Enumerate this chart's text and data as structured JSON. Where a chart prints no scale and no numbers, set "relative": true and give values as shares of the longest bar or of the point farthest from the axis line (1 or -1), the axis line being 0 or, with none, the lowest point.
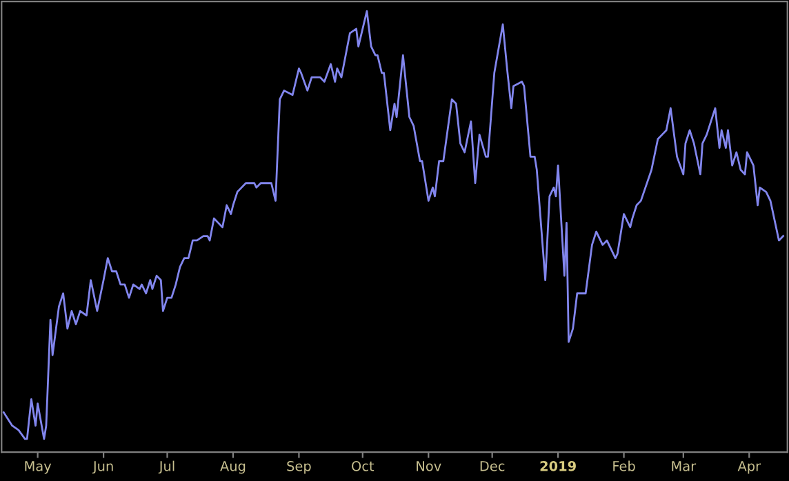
{
  "chart_data": {
    "type": "line",
    "relative": true,
    "grid": false,
    "legend": false,
    "tick_labels": "x",
    "marker": "none",
    "line_style": "solid",
    "xlim": [
      "2018-04-14",
      "2019-04-19"
    ],
    "xticks": [
      {
        "value": "2018-05-01",
        "label": "May"
      },
      {
        "value": "2018-06-01",
        "label": "Jun"
      },
      {
        "value": "2018-07-01",
        "label": "Jul"
      },
      {
        "value": "2018-08-01",
        "label": "Aug"
      },
      {
        "value": "2018-09-01",
        "label": "Sep"
      },
      {
        "value": "2018-10-01",
        "label": "Oct"
      },
      {
        "value": "2018-11-01",
        "label": "Nov"
      },
      {
        "value": "2018-12-01",
        "label": "Dec"
      },
      {
        "value": "2019-01-01",
        "label": "2019"
      },
      {
        "value": "2019-02-01",
        "label": "Feb"
      },
      {
        "value": "2019-03-01",
        "label": "Mar"
      },
      {
        "value": "2019-04-01",
        "label": "Apr"
      }
    ],
    "x": [
      "2018-04-15",
      "2018-04-19",
      "2018-04-22",
      "2018-04-25",
      "2018-04-26",
      "2018-04-28",
      "2018-04-30",
      "2018-05-01",
      "2018-05-04",
      "2018-05-05",
      "2018-05-07",
      "2018-05-08",
      "2018-05-11",
      "2018-05-13",
      "2018-05-15",
      "2018-05-17",
      "2018-05-19",
      "2018-05-21",
      "2018-05-24",
      "2018-05-26",
      "2018-05-29",
      "2018-06-01",
      "2018-06-03",
      "2018-06-05",
      "2018-06-07",
      "2018-06-09",
      "2018-06-11",
      "2018-06-13",
      "2018-06-15",
      "2018-06-18",
      "2018-06-19",
      "2018-06-21",
      "2018-06-23",
      "2018-06-24",
      "2018-06-26",
      "2018-06-28",
      "2018-06-29",
      "2018-07-01",
      "2018-07-03",
      "2018-07-05",
      "2018-07-07",
      "2018-07-09",
      "2018-07-11",
      "2018-07-13",
      "2018-07-15",
      "2018-07-18",
      "2018-07-20",
      "2018-07-21",
      "2018-07-23",
      "2018-07-25",
      "2018-07-27",
      "2018-07-29",
      "2018-07-31",
      "2018-08-01",
      "2018-08-03",
      "2018-08-05",
      "2018-08-07",
      "2018-08-09",
      "2018-08-11",
      "2018-08-12",
      "2018-08-14",
      "2018-08-15",
      "2018-08-18",
      "2018-08-19",
      "2018-08-21",
      "2018-08-23",
      "2018-08-25",
      "2018-08-29",
      "2018-09-01",
      "2018-09-02",
      "2018-09-05",
      "2018-09-07",
      "2018-09-11",
      "2018-09-13",
      "2018-09-16",
      "2018-09-18",
      "2018-09-19",
      "2018-09-21",
      "2018-09-23",
      "2018-09-25",
      "2018-09-28",
      "2018-09-29",
      "2018-10-03",
      "2018-10-05",
      "2018-10-07",
      "2018-10-08",
      "2018-10-10",
      "2018-10-11",
      "2018-10-14",
      "2018-10-16",
      "2018-10-17",
      "2018-10-20",
      "2018-10-23",
      "2018-10-25",
      "2018-10-28",
      "2018-10-29",
      "2018-11-01",
      "2018-11-03",
      "2018-11-04",
      "2018-11-06",
      "2018-11-08",
      "2018-11-12",
      "2018-11-14",
      "2018-11-16",
      "2018-11-18",
      "2018-11-21",
      "2018-11-23",
      "2018-11-25",
      "2018-11-28",
      "2018-11-29",
      "2018-12-02",
      "2018-12-06",
      "2018-12-08",
      "2018-12-10",
      "2018-12-11",
      "2018-12-15",
      "2018-12-16",
      "2018-12-19",
      "2018-12-21",
      "2018-12-22",
      "2018-12-26",
      "2018-12-28",
      "2018-12-30",
      "2018-12-31",
      "2019-01-01",
      "2019-01-04",
      "2019-01-05",
      "2019-01-06",
      "2019-01-08",
      "2019-01-10",
      "2019-01-12",
      "2019-01-14",
      "2019-01-17",
      "2019-01-19",
      "2019-01-22",
      "2019-01-24",
      "2019-01-28",
      "2019-01-29",
      "2019-02-01",
      "2019-02-04",
      "2019-02-05",
      "2019-02-07",
      "2019-02-09",
      "2019-02-14",
      "2019-02-17",
      "2019-02-19",
      "2019-02-21",
      "2019-02-23",
      "2019-02-26",
      "2019-03-01",
      "2019-03-02",
      "2019-03-04",
      "2019-03-06",
      "2019-03-09",
      "2019-03-10",
      "2019-03-12",
      "2019-03-14",
      "2019-03-16",
      "2019-03-18",
      "2019-03-19",
      "2019-03-21",
      "2019-03-22",
      "2019-03-24",
      "2019-03-26",
      "2019-03-28",
      "2019-03-30",
      "2019-03-31",
      "2019-04-03",
      "2019-04-05",
      "2019-04-06",
      "2019-04-09",
      "2019-04-11",
      "2019-04-15",
      "2019-04-17"
    ],
    "series": [
      {
        "color": "#8286ee",
        "values": [
          0.09,
          0.06,
          0.05,
          0.03,
          0.03,
          0.12,
          0.06,
          0.11,
          0.03,
          0.06,
          0.3,
          0.22,
          0.33,
          0.36,
          0.28,
          0.32,
          0.29,
          0.32,
          0.31,
          0.39,
          0.32,
          0.39,
          0.44,
          0.41,
          0.41,
          0.38,
          0.38,
          0.35,
          0.38,
          0.37,
          0.38,
          0.36,
          0.39,
          0.37,
          0.4,
          0.39,
          0.32,
          0.35,
          0.35,
          0.38,
          0.42,
          0.44,
          0.44,
          0.48,
          0.48,
          0.49,
          0.49,
          0.48,
          0.53,
          0.52,
          0.51,
          0.56,
          0.54,
          0.56,
          0.59,
          0.6,
          0.61,
          0.61,
          0.61,
          0.6,
          0.61,
          0.61,
          0.61,
          0.61,
          0.57,
          0.8,
          0.82,
          0.81,
          0.87,
          0.86,
          0.82,
          0.85,
          0.85,
          0.84,
          0.88,
          0.84,
          0.87,
          0.85,
          0.9,
          0.95,
          0.96,
          0.92,
          1.0,
          0.92,
          0.9,
          0.9,
          0.86,
          0.86,
          0.73,
          0.79,
          0.76,
          0.9,
          0.76,
          0.74,
          0.66,
          0.66,
          0.57,
          0.6,
          0.58,
          0.66,
          0.66,
          0.8,
          0.79,
          0.7,
          0.68,
          0.75,
          0.61,
          0.72,
          0.67,
          0.67,
          0.86,
          0.97,
          0.87,
          0.78,
          0.83,
          0.84,
          0.83,
          0.67,
          0.67,
          0.64,
          0.39,
          0.58,
          0.6,
          0.58,
          0.65,
          0.4,
          0.52,
          0.25,
          0.28,
          0.36,
          0.36,
          0.36,
          0.47,
          0.5,
          0.47,
          0.48,
          0.44,
          0.45,
          0.54,
          0.51,
          0.53,
          0.56,
          0.57,
          0.64,
          0.71,
          0.72,
          0.73,
          0.78,
          0.67,
          0.63,
          0.7,
          0.73,
          0.7,
          0.63,
          0.7,
          0.72,
          0.75,
          0.78,
          0.69,
          0.73,
          0.69,
          0.73,
          0.65,
          0.68,
          0.64,
          0.63,
          0.68,
          0.65,
          0.56,
          0.6,
          0.59,
          0.57,
          0.48,
          0.49
        ]
      }
    ]
  }
}
